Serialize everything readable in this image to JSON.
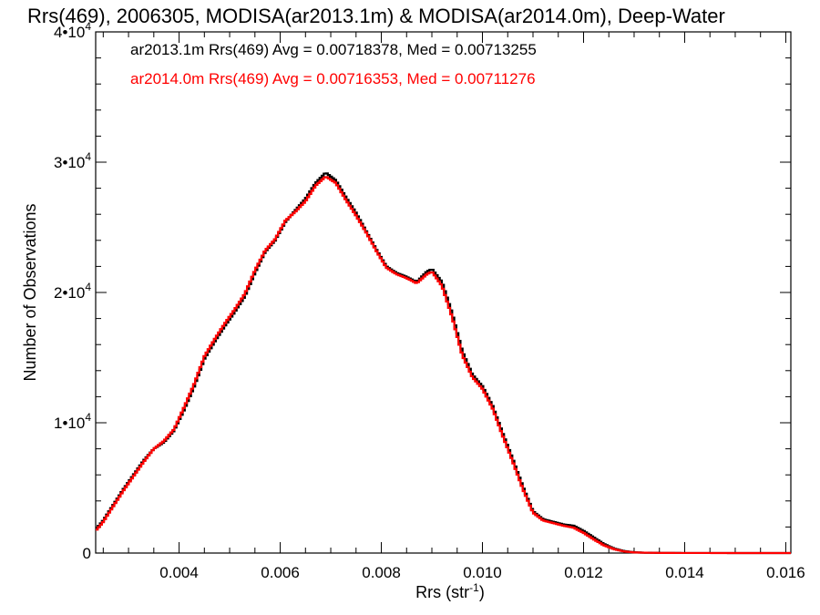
{
  "chart_data": {
    "type": "line",
    "title": "Rrs(469), 2006305, MODISA(ar2013.1m) & MODISA(ar2014.0m), Deep-Water",
    "xlabel": "Rrs (str",
    "xlabel_sup": "-1",
    "xlabel_end": ")",
    "ylabel": "Number of Observations",
    "xlim": [
      0.00235,
      0.0161
    ],
    "ylim": [
      0,
      40000
    ],
    "x_ticks": [
      {
        "value": 0.004,
        "label": "0.004"
      },
      {
        "value": 0.006,
        "label": "0.006"
      },
      {
        "value": 0.008,
        "label": "0.008"
      },
      {
        "value": 0.01,
        "label": "0.010"
      },
      {
        "value": 0.012,
        "label": "0.012"
      },
      {
        "value": 0.014,
        "label": "0.014"
      },
      {
        "value": 0.016,
        "label": "0.016"
      }
    ],
    "y_ticks": [
      {
        "value": 0,
        "label": "0",
        "exp": ""
      },
      {
        "value": 10000,
        "label": "1•10",
        "exp": "4"
      },
      {
        "value": 20000,
        "label": "2•10",
        "exp": "4"
      },
      {
        "value": 30000,
        "label": "3•10",
        "exp": "4"
      },
      {
        "value": 40000,
        "label": "4•10",
        "exp": "4"
      }
    ],
    "grid": false,
    "legend_position": "top-left",
    "series": [
      {
        "name": "ar2013.1m Rrs(469) Avg = 0.00718378, Med = 0.00713255",
        "color": "#000000",
        "points": [
          [
            0.00235,
            1800
          ],
          [
            0.0025,
            2500
          ],
          [
            0.0027,
            3700
          ],
          [
            0.0029,
            4900
          ],
          [
            0.0031,
            6000
          ],
          [
            0.0033,
            7100
          ],
          [
            0.0035,
            8000
          ],
          [
            0.0037,
            8500
          ],
          [
            0.0039,
            9400
          ],
          [
            0.0041,
            11000
          ],
          [
            0.0043,
            12800
          ],
          [
            0.0045,
            14900
          ],
          [
            0.0047,
            16200
          ],
          [
            0.0049,
            17400
          ],
          [
            0.0051,
            18500
          ],
          [
            0.0053,
            19700
          ],
          [
            0.0055,
            21500
          ],
          [
            0.0057,
            23100
          ],
          [
            0.0059,
            24000
          ],
          [
            0.0061,
            25400
          ],
          [
            0.0063,
            26300
          ],
          [
            0.0065,
            27200
          ],
          [
            0.0067,
            28400
          ],
          [
            0.0069,
            29200
          ],
          [
            0.0071,
            28600
          ],
          [
            0.0073,
            27300
          ],
          [
            0.0075,
            26100
          ],
          [
            0.0077,
            24700
          ],
          [
            0.0079,
            23300
          ],
          [
            0.0081,
            22000
          ],
          [
            0.0083,
            21500
          ],
          [
            0.0085,
            21200
          ],
          [
            0.0087,
            20800
          ],
          [
            0.0089,
            21600
          ],
          [
            0.009,
            21800
          ],
          [
            0.0092,
            20800
          ],
          [
            0.0094,
            18400
          ],
          [
            0.0096,
            15500
          ],
          [
            0.0098,
            13700
          ],
          [
            0.01,
            12800
          ],
          [
            0.0102,
            11300
          ],
          [
            0.0104,
            9200
          ],
          [
            0.0106,
            7200
          ],
          [
            0.0108,
            5100
          ],
          [
            0.011,
            3200
          ],
          [
            0.0112,
            2600
          ],
          [
            0.0114,
            2400
          ],
          [
            0.0116,
            2200
          ],
          [
            0.0118,
            2100
          ],
          [
            0.012,
            1700
          ],
          [
            0.0122,
            1200
          ],
          [
            0.0124,
            700
          ],
          [
            0.0126,
            350
          ],
          [
            0.0128,
            150
          ],
          [
            0.013,
            60
          ],
          [
            0.0132,
            30
          ],
          [
            0.0136,
            10
          ],
          [
            0.014,
            5
          ],
          [
            0.015,
            2
          ],
          [
            0.0161,
            0
          ]
        ]
      },
      {
        "name": "ar2014.0m Rrs(469) Avg = 0.00716353, Med = 0.00711276",
        "color": "#ff0000",
        "points": [
          [
            0.00235,
            1700
          ],
          [
            0.0025,
            2400
          ],
          [
            0.0027,
            3600
          ],
          [
            0.0029,
            4800
          ],
          [
            0.0031,
            5900
          ],
          [
            0.0033,
            7000
          ],
          [
            0.0035,
            8000
          ],
          [
            0.0037,
            8600
          ],
          [
            0.0039,
            9500
          ],
          [
            0.0041,
            11200
          ],
          [
            0.0043,
            13000
          ],
          [
            0.0045,
            15100
          ],
          [
            0.0047,
            16400
          ],
          [
            0.0049,
            17600
          ],
          [
            0.0051,
            18700
          ],
          [
            0.0053,
            19900
          ],
          [
            0.0055,
            21700
          ],
          [
            0.0057,
            23200
          ],
          [
            0.0059,
            24100
          ],
          [
            0.0061,
            25500
          ],
          [
            0.0063,
            26200
          ],
          [
            0.0065,
            27000
          ],
          [
            0.0067,
            28200
          ],
          [
            0.0069,
            28900
          ],
          [
            0.0071,
            28400
          ],
          [
            0.0073,
            27100
          ],
          [
            0.0075,
            25900
          ],
          [
            0.0077,
            24600
          ],
          [
            0.0079,
            23200
          ],
          [
            0.0081,
            21900
          ],
          [
            0.0083,
            21400
          ],
          [
            0.0085,
            21100
          ],
          [
            0.0087,
            20700
          ],
          [
            0.0089,
            21400
          ],
          [
            0.009,
            21600
          ],
          [
            0.0092,
            20500
          ],
          [
            0.0094,
            18100
          ],
          [
            0.0096,
            15200
          ],
          [
            0.0098,
            13500
          ],
          [
            0.01,
            12600
          ],
          [
            0.0102,
            11100
          ],
          [
            0.0104,
            9000
          ],
          [
            0.0106,
            7000
          ],
          [
            0.0108,
            4900
          ],
          [
            0.011,
            3100
          ],
          [
            0.0112,
            2500
          ],
          [
            0.0114,
            2300
          ],
          [
            0.0116,
            2100
          ],
          [
            0.0118,
            1950
          ],
          [
            0.012,
            1550
          ],
          [
            0.0122,
            1050
          ],
          [
            0.0124,
            600
          ],
          [
            0.0126,
            300
          ],
          [
            0.0128,
            120
          ],
          [
            0.013,
            50
          ],
          [
            0.0132,
            25
          ],
          [
            0.0136,
            8
          ],
          [
            0.014,
            4
          ],
          [
            0.015,
            1
          ],
          [
            0.0161,
            0
          ]
        ]
      }
    ]
  }
}
